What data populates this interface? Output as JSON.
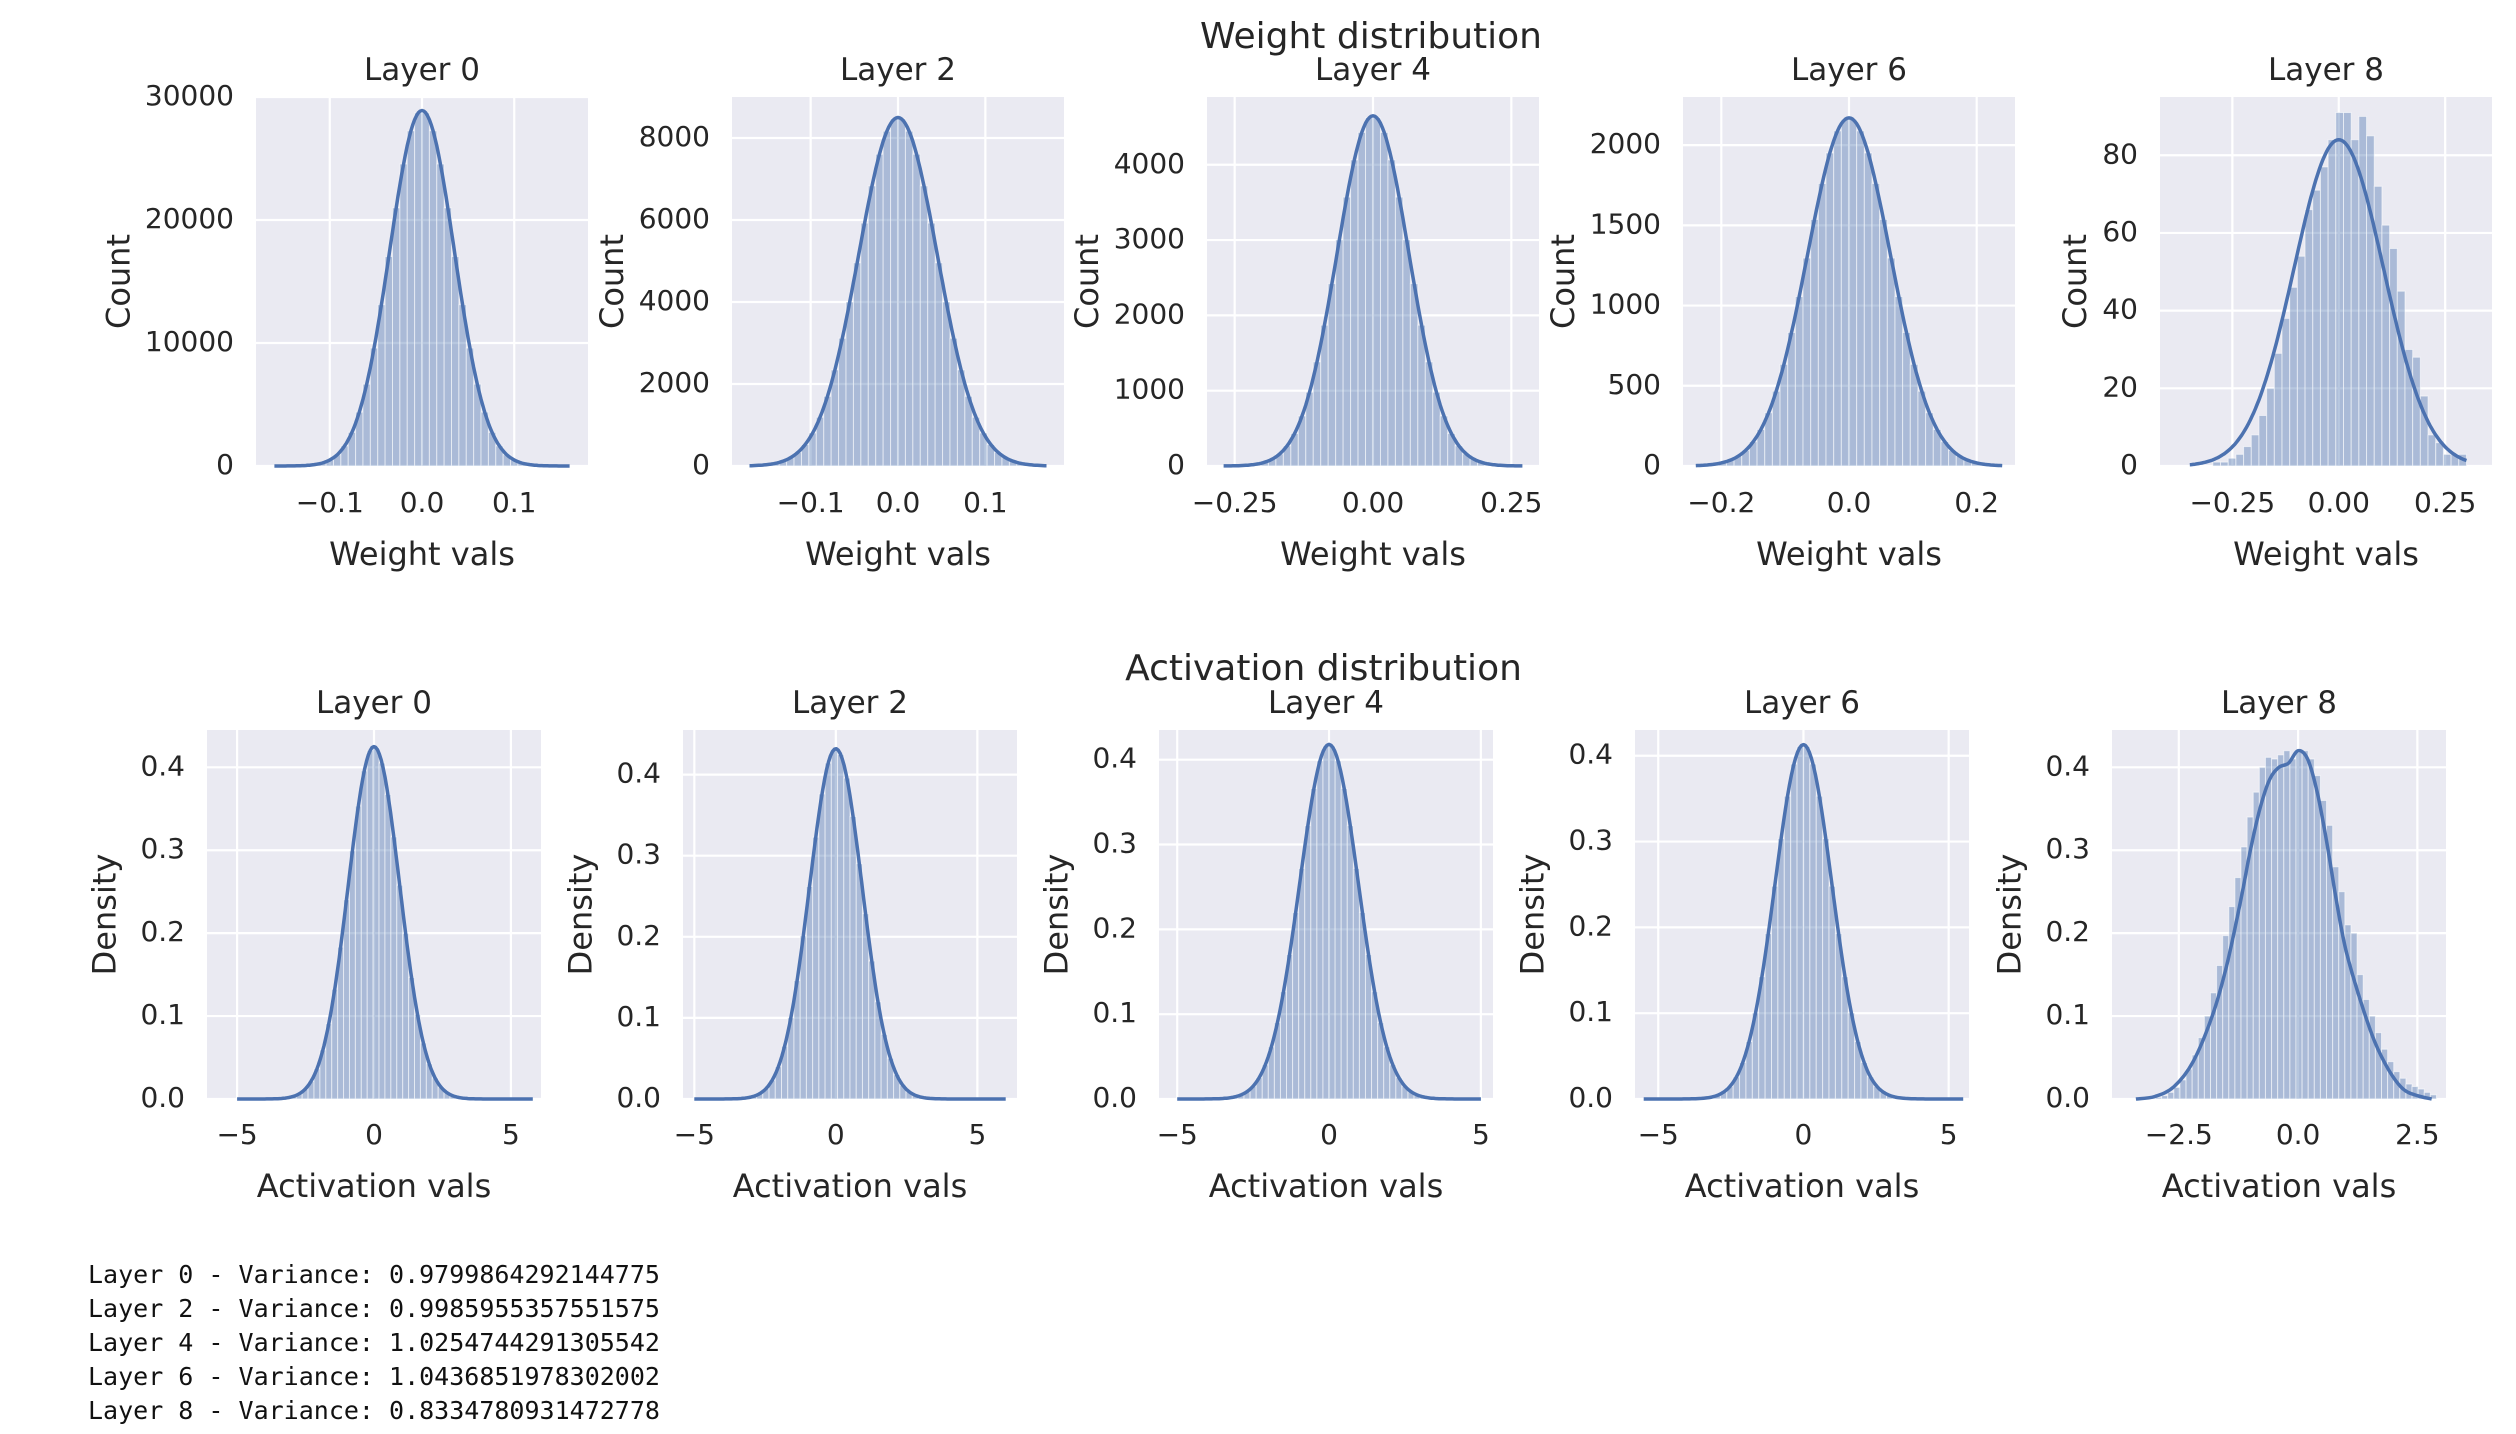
{
  "figure": {
    "rows": [
      {
        "title": "Weight distribution",
        "xlabel": "Weight vals",
        "ylabel": "Count",
        "panels": [
          {
            "title": "Layer 0",
            "xlim": [
              -0.18,
              0.18
            ],
            "ylim": [
              0,
              30000
            ],
            "xticks": [
              -0.1,
              0.0,
              0.1
            ],
            "xtick_labels": [
              "−0.1",
              "0.0",
              "0.1"
            ],
            "yticks": [
              0,
              10000,
              20000,
              30000
            ],
            "ytick_labels": [
              "0",
              "10000",
              "20000",
              "30000"
            ],
            "hist": {
              "type": "gauss",
              "mu": 0.0,
              "sigma": 0.035,
              "peak": 28900,
              "range": [
                -0.16,
                0.16
              ],
              "bins": 40
            }
          },
          {
            "title": "Layer 2",
            "xlim": [
              -0.19,
              0.19
            ],
            "ylim": [
              0,
              9000
            ],
            "xticks": [
              -0.1,
              0.0,
              0.1
            ],
            "xtick_labels": [
              "−0.1",
              "0.0",
              "0.1"
            ],
            "yticks": [
              0,
              2000,
              4000,
              6000,
              8000
            ],
            "ytick_labels": [
              "0",
              "2000",
              "4000",
              "6000",
              "8000"
            ],
            "hist": {
              "type": "gauss",
              "mu": 0.0,
              "sigma": 0.045,
              "peak": 8500,
              "range": [
                -0.17,
                0.17
              ],
              "bins": 40
            }
          },
          {
            "title": "Layer 4",
            "xlim": [
              -0.3,
              0.3
            ],
            "ylim": [
              0,
              4900
            ],
            "xticks": [
              -0.25,
              0.0,
              0.25
            ],
            "xtick_labels": [
              "−0.25",
              "0.00",
              "0.25"
            ],
            "yticks": [
              0,
              1000,
              2000,
              3000,
              4000
            ],
            "ytick_labels": [
              "0",
              "1000",
              "2000",
              "3000",
              "4000"
            ],
            "hist": {
              "type": "gauss",
              "mu": 0.0,
              "sigma": 0.065,
              "peak": 4650,
              "range": [
                -0.27,
                0.27
              ],
              "bins": 40
            }
          },
          {
            "title": "Layer 6",
            "xlim": [
              -0.26,
              0.26
            ],
            "ylim": [
              0,
              2300
            ],
            "xticks": [
              -0.2,
              0.0,
              0.2
            ],
            "xtick_labels": [
              "−0.2",
              "0.0",
              "0.2"
            ],
            "yticks": [
              0,
              500,
              1000,
              1500,
              2000
            ],
            "ytick_labels": [
              "0",
              "500",
              "1000",
              "1500",
              "2000"
            ],
            "hist": {
              "type": "gauss",
              "mu": 0.0,
              "sigma": 0.065,
              "peak": 2170,
              "range": [
                -0.24,
                0.24
              ],
              "bins": 40
            }
          },
          {
            "title": "Layer 8",
            "xlim": [
              -0.42,
              0.36
            ],
            "ylim": [
              0,
              95
            ],
            "xticks": [
              -0.25,
              0.0,
              0.25
            ],
            "xtick_labels": [
              "−0.25",
              "0.00",
              "0.25"
            ],
            "yticks": [
              0,
              20,
              40,
              60,
              80
            ],
            "ytick_labels": [
              "0",
              "20",
              "40",
              "60",
              "80"
            ],
            "hist": {
              "type": "values",
              "range": [
                -0.35,
                0.3
              ],
              "values": [
                0,
                0,
                0,
                1,
                1,
                2,
                3,
                5,
                8,
                13,
                20,
                29,
                38,
                46,
                54,
                66,
                71,
                77,
                84,
                91,
                91,
                84,
                90,
                85,
                72,
                62,
                56,
                45,
                30,
                28,
                18,
                8,
                6,
                3,
                3,
                3
              ]
            },
            "kde": {
              "mu": 0.0,
              "sigma": 0.105,
              "peak": 84,
              "range": [
                -0.35,
                0.3
              ]
            }
          }
        ]
      },
      {
        "title": "Activation distribution",
        "xlabel": "Activation vals",
        "ylabel": "Density",
        "panels": [
          {
            "title": "Layer 0",
            "xlim": [
              -6.1,
              6.1
            ],
            "ylim": [
              0,
              0.445
            ],
            "xticks": [
              -5,
              0,
              5
            ],
            "xtick_labels": [
              "−5",
              "0",
              "5"
            ],
            "yticks": [
              0.0,
              0.1,
              0.2,
              0.3,
              0.4
            ],
            "ytick_labels": [
              "0.0",
              "0.1",
              "0.2",
              "0.3",
              "0.4"
            ],
            "hist": {
              "type": "gauss",
              "mu": 0.0,
              "sigma": 0.94,
              "peak": 0.425,
              "range": [
                -5.0,
                5.8
              ],
              "bins": 50
            }
          },
          {
            "title": "Layer 2",
            "xlim": [
              -5.4,
              6.4
            ],
            "ylim": [
              0,
              0.455
            ],
            "xticks": [
              -5,
              0,
              5
            ],
            "xtick_labels": [
              "−5",
              "0",
              "5"
            ],
            "yticks": [
              0.0,
              0.1,
              0.2,
              0.3,
              0.4
            ],
            "ytick_labels": [
              "0.0",
              "0.1",
              "0.2",
              "0.3",
              "0.4"
            ],
            "hist": {
              "type": "gauss",
              "mu": 0.0,
              "sigma": 0.93,
              "peak": 0.432,
              "range": [
                -5.0,
                6.0
              ],
              "bins": 50
            }
          },
          {
            "title": "Layer 4",
            "xlim": [
              -5.6,
              5.4
            ],
            "ylim": [
              0,
              0.435
            ],
            "xticks": [
              -5,
              0,
              5
            ],
            "xtick_labels": [
              "−5",
              "0",
              "5"
            ],
            "yticks": [
              0.0,
              0.1,
              0.2,
              0.3,
              0.4
            ],
            "ytick_labels": [
              "0.0",
              "0.1",
              "0.2",
              "0.3",
              "0.4"
            ],
            "hist": {
              "type": "gauss",
              "mu": 0.0,
              "sigma": 0.97,
              "peak": 0.418,
              "range": [
                -5.0,
                5.0
              ],
              "bins": 50
            }
          },
          {
            "title": "Layer 6",
            "xlim": [
              -5.8,
              5.7
            ],
            "ylim": [
              0,
              0.43
            ],
            "xticks": [
              -5,
              0,
              5
            ],
            "xtick_labels": [
              "−5",
              "0",
              "5"
            ],
            "yticks": [
              0.0,
              0.1,
              0.2,
              0.3,
              0.4
            ],
            "ytick_labels": [
              "0.0",
              "0.1",
              "0.2",
              "0.3",
              "0.4"
            ],
            "hist": {
              "type": "gauss",
              "mu": 0.0,
              "sigma": 0.98,
              "peak": 0.413,
              "range": [
                -5.5,
                5.5
              ],
              "bins": 50
            }
          },
          {
            "title": "Layer 8",
            "xlim": [
              -3.9,
              3.1
            ],
            "ylim": [
              0,
              0.445
            ],
            "xticks": [
              -2.5,
              0.0,
              2.5
            ],
            "xtick_labels": [
              "−2.5",
              "0.0",
              "2.5"
            ],
            "yticks": [
              0.0,
              0.1,
              0.2,
              0.3,
              0.4
            ],
            "ytick_labels": [
              "0.0",
              "0.1",
              "0.2",
              "0.3",
              "0.4"
            ],
            "hist": {
              "type": "values",
              "range": [
                -3.5,
                2.9
              ],
              "values": [
                0.0,
                0.0,
                0.0,
                0.001,
                0.002,
                0.004,
                0.008,
                0.014,
                0.023,
                0.036,
                0.053,
                0.074,
                0.1,
                0.128,
                0.161,
                0.197,
                0.232,
                0.267,
                0.304,
                0.34,
                0.37,
                0.4,
                0.412,
                0.41,
                0.415,
                0.42,
                0.41,
                0.418,
                0.42,
                0.41,
                0.39,
                0.36,
                0.33,
                0.28,
                0.25,
                0.21,
                0.2,
                0.15,
                0.12,
                0.1,
                0.08,
                0.06,
                0.045,
                0.033,
                0.025,
                0.018,
                0.015,
                0.012,
                0.008,
                0.005
              ]
            },
            "kde": {
              "type": "points",
              "x": [
                -3.4,
                -3.0,
                -2.6,
                -2.2,
                -1.8,
                -1.5,
                -1.2,
                -1.0,
                -0.8,
                -0.6,
                -0.4,
                -0.2,
                0.0,
                0.2,
                0.4,
                0.6,
                0.8,
                1.0,
                1.3,
                1.6,
                1.9,
                2.2,
                2.5,
                2.8
              ],
              "y": [
                0.0,
                0.003,
                0.015,
                0.045,
                0.1,
                0.16,
                0.24,
                0.3,
                0.35,
                0.385,
                0.4,
                0.405,
                0.42,
                0.41,
                0.37,
                0.31,
                0.24,
                0.18,
                0.12,
                0.07,
                0.035,
                0.012,
                0.004,
                0.0
              ]
            }
          }
        ]
      }
    ]
  },
  "variance_log": [
    "Layer 0 - Variance: 0.9799864292144775",
    "Layer 2 - Variance: 0.9985955357551575",
    "Layer 4 - Variance: 1.0254744291305542",
    "Layer 6 - Variance: 1.0436851978302002",
    "Layer 8 - Variance: 0.8334780931472778"
  ],
  "colors": {
    "panel_bg": "#eaeaf2",
    "grid": "#ffffff",
    "bar_fill": "#4c72b0",
    "kde_line": "#4c72b0",
    "text": "#262626"
  }
}
